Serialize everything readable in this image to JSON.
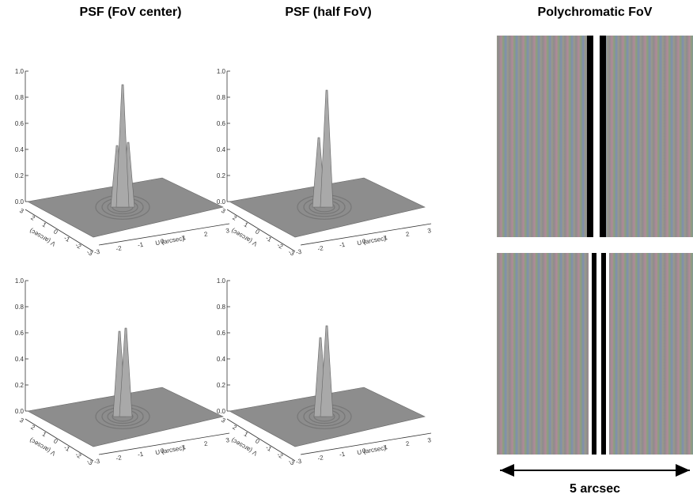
{
  "columns": [
    "PSF (FoV center)",
    "PSF (half FoV)",
    "Polychromatic FoV"
  ],
  "z_ticks": [
    "0.0",
    "0.2",
    "0.4",
    "0.6",
    "0.8",
    "1.0"
  ],
  "u_ticks": [
    "-3",
    "-2",
    "-1",
    "0",
    "1",
    "2",
    "3"
  ],
  "v_ticks": [
    "-3",
    "-2",
    "-1",
    "0",
    "1",
    "2",
    "3"
  ],
  "u_label": "U (arcsec)",
  "v_label": "V (arcsec)",
  "scale_label": "5 arcsec"
}
